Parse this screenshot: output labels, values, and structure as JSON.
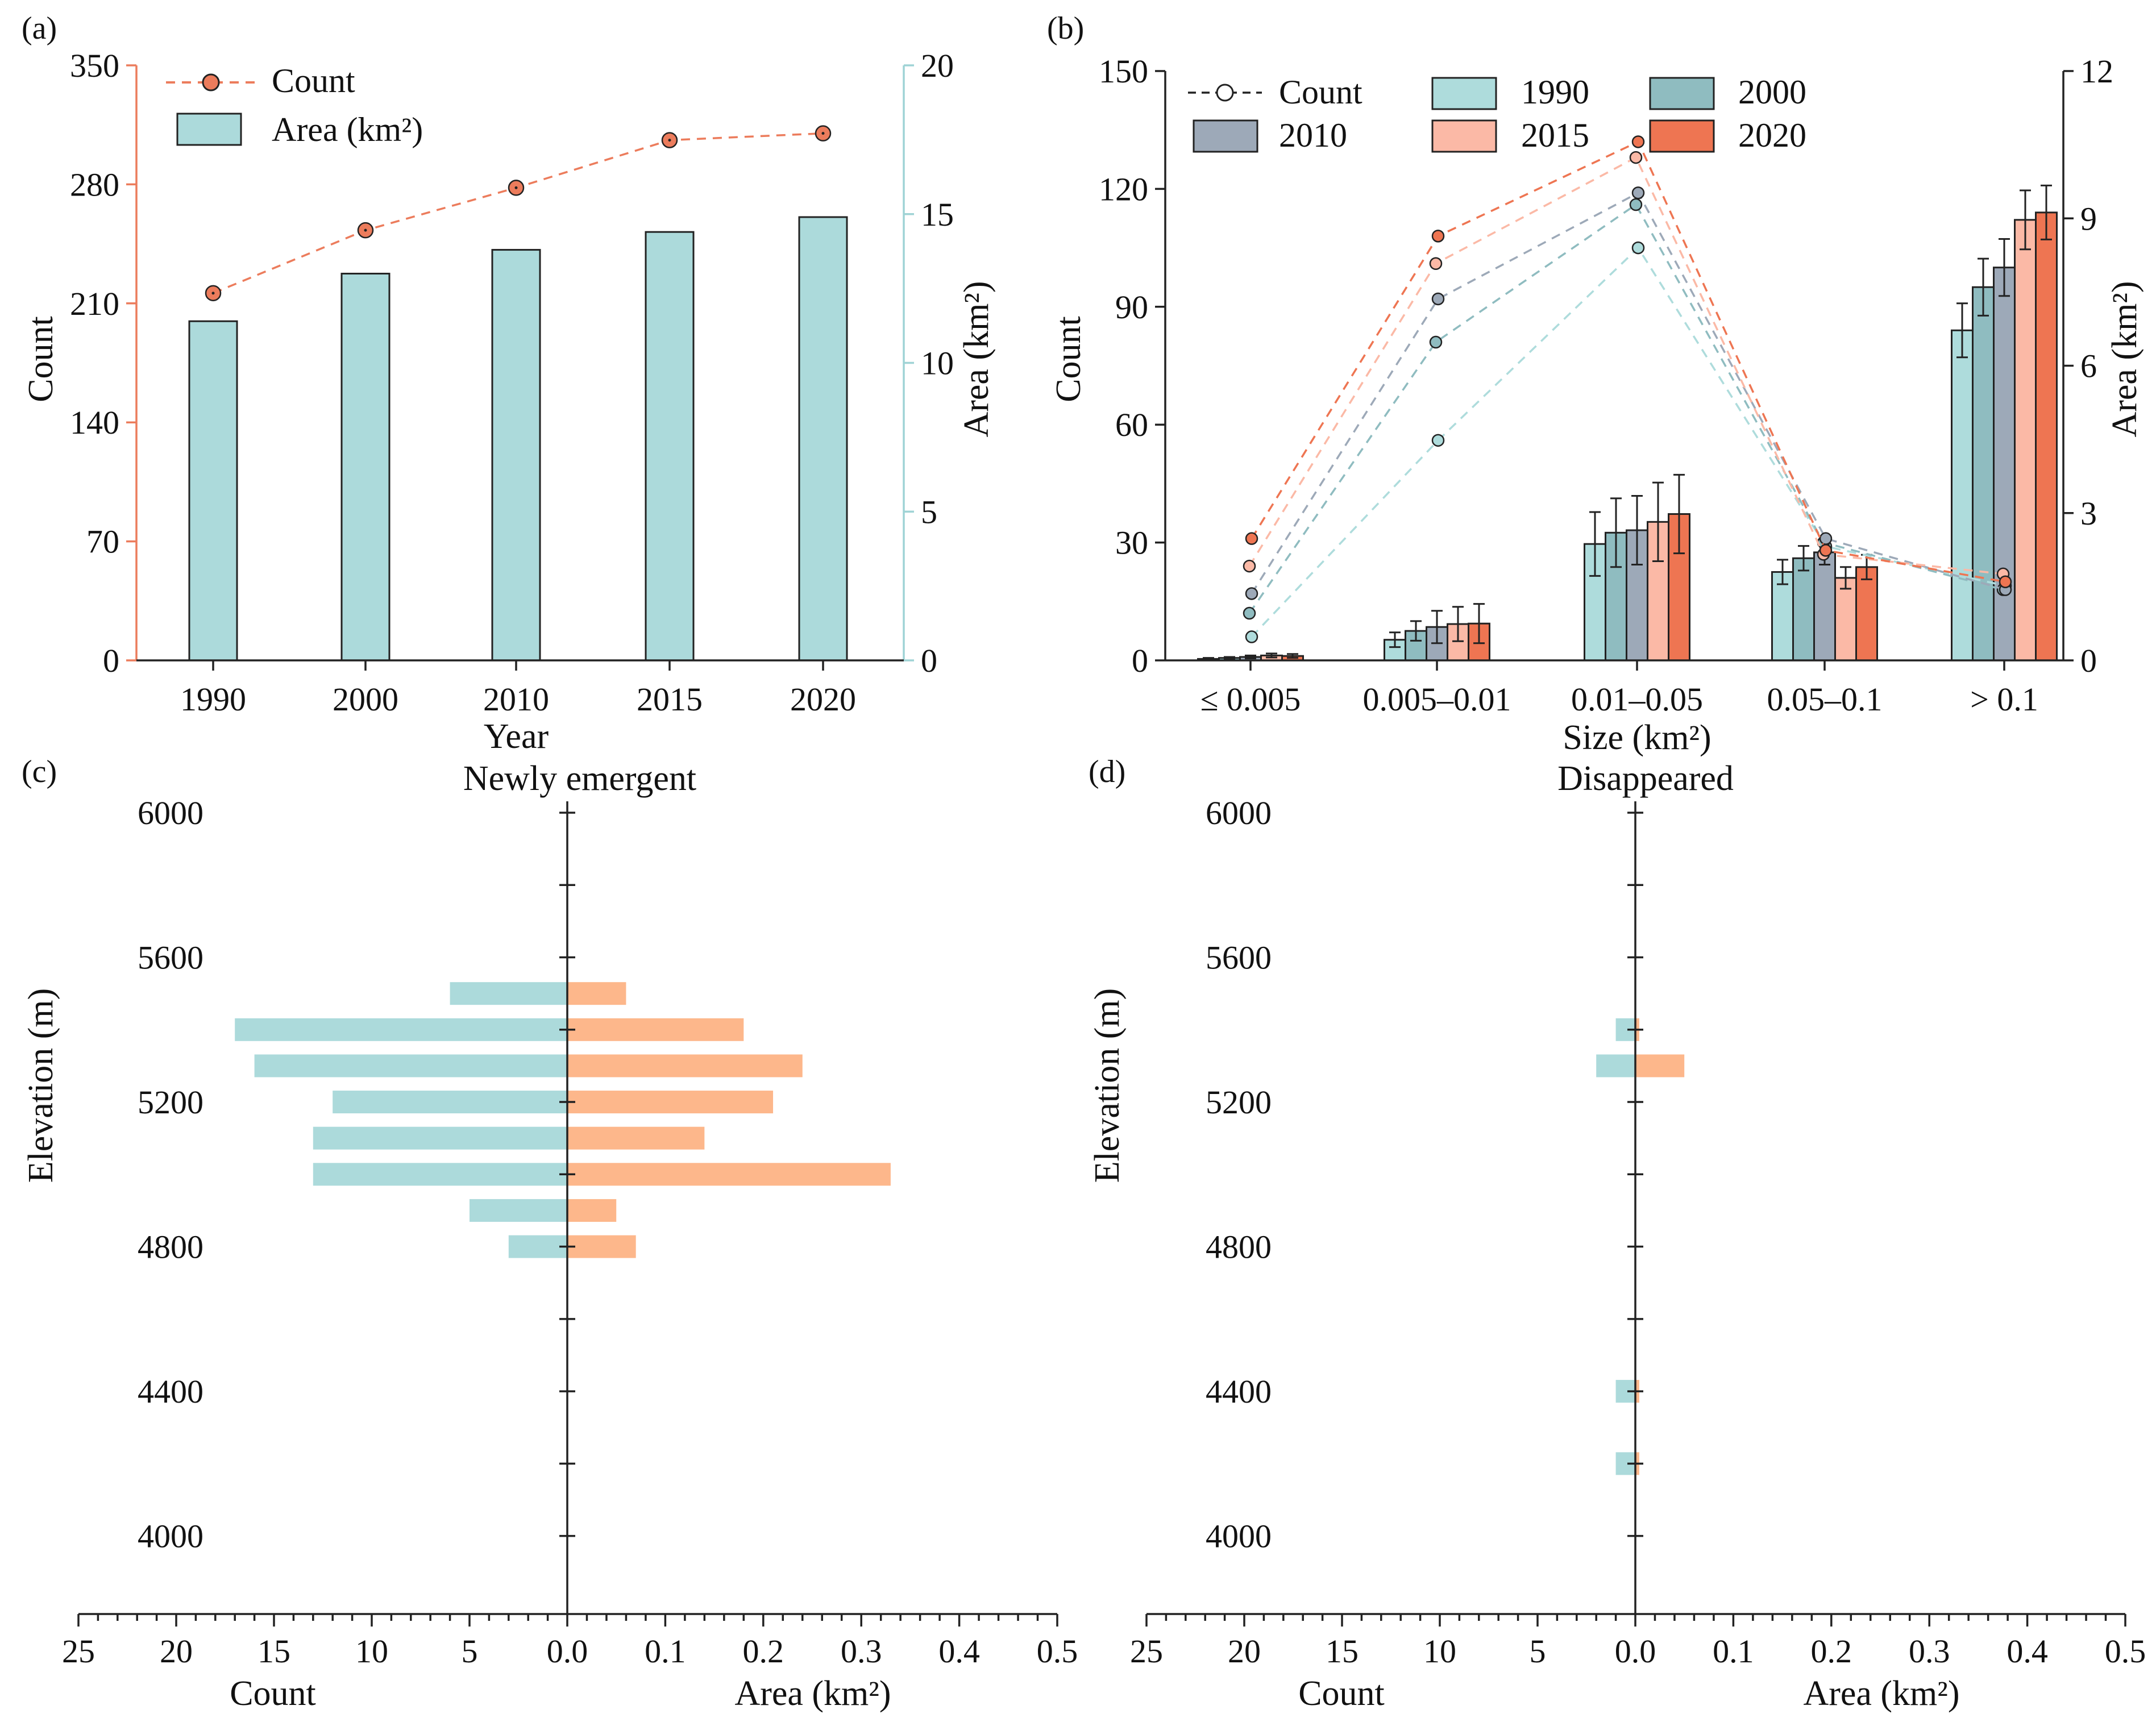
{
  "colors": {
    "teal": "#acdadb",
    "teal_axis": "#9fd3d5",
    "orange_line": "#ec7c5c",
    "orange_bar": "#fdb78b",
    "c1990": "#aedcdc",
    "c2000": "#8fbcc0",
    "c2010": "#9da9b8",
    "c2015": "#fbb9a6",
    "c2020": "#ee7552",
    "axis": "#222222"
  },
  "chart_data": [
    {
      "panel": "(a)",
      "type": "bar+line",
      "xlabel": "Year",
      "ylabel_left": "Count",
      "ylabel_right": "Area (km²)",
      "ylim_left": [
        0,
        350
      ],
      "ylim_right": [
        0,
        20
      ],
      "yticks_left": [
        "0",
        "70",
        "140",
        "210",
        "280",
        "350"
      ],
      "yticks_right": [
        "0",
        "5",
        "10",
        "15",
        "20"
      ],
      "categories": [
        "1990",
        "2000",
        "2010",
        "2015",
        "2020"
      ],
      "series": [
        {
          "name": "Count",
          "axis": "left",
          "kind": "line",
          "values": [
            216,
            253,
            278,
            306,
            310
          ]
        },
        {
          "name": "Area (km²)",
          "axis": "right",
          "kind": "bar",
          "values": [
            11.4,
            13.0,
            13.8,
            14.4,
            14.9
          ]
        }
      ],
      "legend": [
        "Count",
        "Area (km²)"
      ],
      "legend_position": "top-left"
    },
    {
      "panel": "(b)",
      "type": "grouped-bar+line",
      "xlabel": "Size (km²)",
      "ylabel_left": "Count",
      "ylabel_right": "Area (km²)",
      "ylim_left": [
        0,
        150
      ],
      "ylim_right": [
        0,
        12
      ],
      "yticks_left": [
        "0",
        "30",
        "60",
        "90",
        "120",
        "150"
      ],
      "yticks_right": [
        "0",
        "3",
        "6",
        "9",
        "12"
      ],
      "categories": [
        "≤ 0.005",
        "0.005–0.01",
        "0.01–0.05",
        "0.05–0.1",
        "> 0.1"
      ],
      "series": [
        {
          "name": "1990",
          "count": [
            6,
            56,
            105,
            29,
            19
          ],
          "area": [
            0.03,
            0.42,
            2.37,
            1.8,
            6.72
          ],
          "area_err": [
            0.02,
            0.15,
            0.65,
            0.25,
            0.55
          ]
        },
        {
          "name": "2000",
          "count": [
            12,
            81,
            116,
            30,
            18
          ],
          "area": [
            0.05,
            0.6,
            2.6,
            2.08,
            7.6
          ],
          "area_err": [
            0.02,
            0.2,
            0.7,
            0.25,
            0.58
          ]
        },
        {
          "name": "2010",
          "count": [
            17,
            92,
            119,
            31,
            18
          ],
          "area": [
            0.07,
            0.68,
            2.65,
            2.2,
            8.0
          ],
          "area_err": [
            0.03,
            0.33,
            0.7,
            0.25,
            0.58
          ]
        },
        {
          "name": "2015",
          "count": [
            24,
            101,
            128,
            27,
            22
          ],
          "area": [
            0.1,
            0.74,
            2.82,
            1.68,
            8.97
          ],
          "area_err": [
            0.04,
            0.35,
            0.8,
            0.22,
            0.6
          ]
        },
        {
          "name": "2020",
          "count": [
            31,
            108,
            132,
            28,
            20
          ],
          "area": [
            0.09,
            0.75,
            2.98,
            1.9,
            9.12
          ],
          "area_err": [
            0.04,
            0.4,
            0.8,
            0.25,
            0.55
          ]
        }
      ],
      "legend": [
        "Count",
        "1990",
        "2000",
        "2010",
        "2015",
        "2020"
      ],
      "legend_position": "top"
    },
    {
      "panel": "(c)",
      "type": "bidirectional-bar",
      "title": "Newly emergent",
      "ylabel": "Elevation (m)",
      "xlabel_left": "Count",
      "xlabel_right": "Area (km²)",
      "xticks_left": [
        "25",
        "20",
        "15",
        "10",
        "5",
        "0.0"
      ],
      "xticks_right": [
        "0.1",
        "0.2",
        "0.3",
        "0.4",
        "0.5"
      ],
      "count_lim": [
        0,
        25
      ],
      "area_lim": [
        0,
        0.5
      ],
      "yticks": [
        "4000",
        "4400",
        "4800",
        "5200",
        "5600",
        "6000"
      ],
      "ylim": [
        3800,
        6000
      ],
      "elevation": [
        4800,
        4900,
        5000,
        5100,
        5200,
        5300,
        5400,
        5500
      ],
      "count": [
        3,
        5,
        13,
        13,
        12,
        16,
        17,
        6
      ],
      "area": [
        0.07,
        0.05,
        0.33,
        0.14,
        0.21,
        0.24,
        0.18,
        0.06
      ]
    },
    {
      "panel": "(d)",
      "type": "bidirectional-bar",
      "title": "Disappeared",
      "ylabel": "Elevation (m)",
      "xlabel_left": "Count",
      "xlabel_right": "Area (km²)",
      "xticks_left": [
        "25",
        "20",
        "15",
        "10",
        "5",
        "0.0"
      ],
      "xticks_right": [
        "0.1",
        "0.2",
        "0.3",
        "0.4",
        "0.5"
      ],
      "count_lim": [
        0,
        25
      ],
      "area_lim": [
        0,
        0.5
      ],
      "yticks": [
        "4000",
        "4400",
        "4800",
        "5200",
        "5600",
        "6000"
      ],
      "ylim": [
        3800,
        6000
      ],
      "elevation": [
        4200,
        4400,
        5300,
        5400
      ],
      "count": [
        1,
        1,
        2,
        1
      ],
      "area": [
        0.004,
        0.004,
        0.05,
        0.004
      ]
    }
  ]
}
